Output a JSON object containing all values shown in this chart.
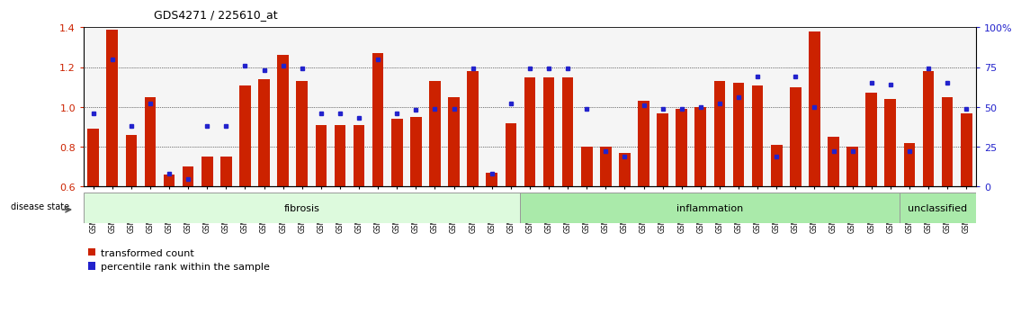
{
  "title": "GDS4271 / 225610_at",
  "samples": [
    "GSM380382",
    "GSM380383",
    "GSM380384",
    "GSM380385",
    "GSM380386",
    "GSM380387",
    "GSM380388",
    "GSM380389",
    "GSM380390",
    "GSM380391",
    "GSM380392",
    "GSM380393",
    "GSM380394",
    "GSM380395",
    "GSM380396",
    "GSM380397",
    "GSM380398",
    "GSM380399",
    "GSM380400",
    "GSM380401",
    "GSM380402",
    "GSM380403",
    "GSM380404",
    "GSM380405",
    "GSM380406",
    "GSM380407",
    "GSM380408",
    "GSM380409",
    "GSM380410",
    "GSM380411",
    "GSM380412",
    "GSM380413",
    "GSM380414",
    "GSM380415",
    "GSM380416",
    "GSM380417",
    "GSM380418",
    "GSM380419",
    "GSM380420",
    "GSM380421",
    "GSM380422",
    "GSM380423",
    "GSM380424",
    "GSM380425",
    "GSM380426",
    "GSM380427",
    "GSM380428"
  ],
  "bar_values": [
    0.89,
    1.39,
    0.86,
    1.05,
    0.66,
    0.7,
    0.75,
    0.75,
    1.11,
    1.14,
    1.26,
    1.13,
    0.91,
    0.91,
    0.91,
    1.27,
    0.94,
    0.95,
    1.13,
    1.05,
    1.18,
    0.67,
    0.92,
    1.15,
    1.15,
    1.15,
    0.8,
    0.8,
    0.77,
    1.03,
    0.97,
    0.99,
    1.0,
    1.13,
    1.12,
    1.11,
    0.81,
    1.1,
    1.38,
    0.85,
    0.8,
    1.07,
    1.04,
    0.82,
    1.18,
    1.05,
    0.97
  ],
  "dot_pct": [
    46,
    80,
    38,
    52,
    8,
    5,
    38,
    38,
    76,
    73,
    76,
    74,
    46,
    46,
    43,
    80,
    46,
    48,
    49,
    49,
    74,
    8,
    52,
    74,
    74,
    74,
    49,
    22,
    19,
    51,
    49,
    49,
    50,
    52,
    56,
    69,
    19,
    69,
    50,
    22,
    22,
    65,
    64,
    22,
    74,
    65,
    49
  ],
  "bar_color": "#cc2200",
  "dot_color": "#2222cc",
  "ylim_left": [
    0.6,
    1.4
  ],
  "ylim_right": [
    0,
    100
  ],
  "yticks_left": [
    0.6,
    0.8,
    1.0,
    1.2,
    1.4
  ],
  "yticks_right": [
    0,
    25,
    50,
    75,
    100
  ],
  "groups": [
    {
      "label": "fibrosis",
      "start": 0,
      "end": 23,
      "color": "#ddfadd"
    },
    {
      "label": "inflammation",
      "start": 23,
      "end": 43,
      "color": "#aaeaaa"
    },
    {
      "label": "unclassified",
      "start": 43,
      "end": 47,
      "color": "#aaeaaa"
    }
  ],
  "legend_items": [
    {
      "label": "transformed count",
      "color": "#cc2200",
      "marker": "s"
    },
    {
      "label": "percentile rank within the sample",
      "color": "#2222cc",
      "marker": "s"
    }
  ],
  "disease_state_label": "disease state",
  "bar_width": 0.6
}
